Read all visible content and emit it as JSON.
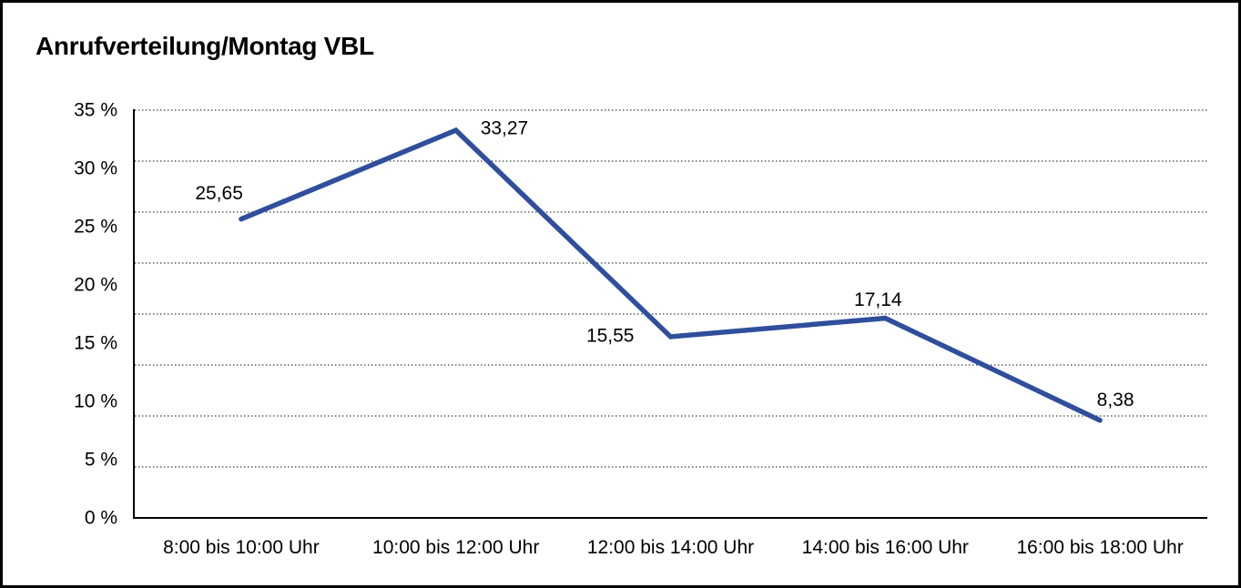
{
  "title": "Anrufverteilung/Montag VBL",
  "chart_data": {
    "type": "line",
    "title": "Anrufverteilung/Montag VBL",
    "categories": [
      "8:00 bis 10:00 Uhr",
      "10:00 bis 12:00 Uhr",
      "12:00 bis 14:00 Uhr",
      "14:00 bis 16:00 Uhr",
      "16:00 bis 18:00 Uhr"
    ],
    "values": [
      25.65,
      33.27,
      15.55,
      17.14,
      8.38
    ],
    "value_labels": [
      "25,65",
      "33,27",
      "15,55",
      "17,14",
      "8,38"
    ],
    "xlabel": "",
    "ylabel": "",
    "ylim": [
      0,
      35
    ],
    "y_ticks": [
      0,
      5,
      10,
      15,
      20,
      25,
      30,
      35
    ],
    "y_tick_labels": [
      "0 %",
      "5 %",
      "10 %",
      "15 %",
      "20 %",
      "25 %",
      "30 %",
      "35 %"
    ],
    "grid": "on",
    "grid_divisions": 8,
    "grid_style": "dotted",
    "legend_position": "none",
    "line_color": "#2F4F9C",
    "axis_color": "#000000",
    "grid_color": "#333333",
    "text_color": "#000000",
    "background_color": "#FFFFFF"
  }
}
